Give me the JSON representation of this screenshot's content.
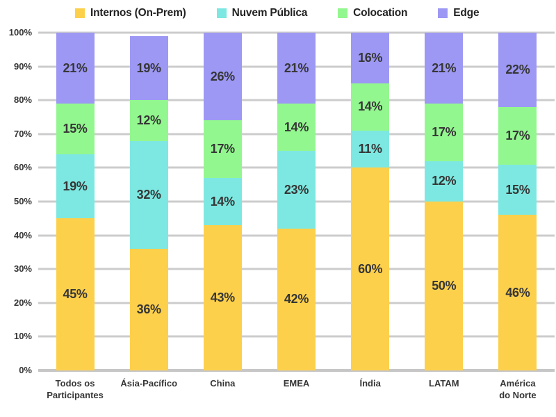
{
  "chart_data": {
    "type": "bar",
    "stacked": true,
    "orientation": "vertical",
    "categories": [
      "Todos os\nParticipantes",
      "Ásia-Pacífico",
      "China",
      "EMEA",
      "Índia",
      "LATAM",
      "América\ndo Norte"
    ],
    "series": [
      {
        "name": "Internos (On-Prem)",
        "color": "#FDD04C",
        "values": [
          45,
          36,
          43,
          42,
          60,
          50,
          46
        ]
      },
      {
        "name": "Nuvem Pública",
        "color": "#7DE8E1",
        "values": [
          19,
          32,
          14,
          23,
          11,
          12,
          15
        ]
      },
      {
        "name": "Colocation",
        "color": "#93F78F",
        "values": [
          15,
          12,
          17,
          14,
          14,
          17,
          17
        ]
      },
      {
        "name": "Edge",
        "color": "#9D98F4",
        "values": [
          21,
          19,
          26,
          21,
          16,
          21,
          22
        ]
      }
    ],
    "title": "",
    "xlabel": "",
    "ylabel": "",
    "ylim": [
      0,
      100
    ],
    "yticks": [
      "0%",
      "10%",
      "20%",
      "30%",
      "40%",
      "50%",
      "60%",
      "70%",
      "80%",
      "90%",
      "100%"
    ],
    "grid": true,
    "legend_position": "top",
    "value_suffix": "%",
    "data_labels": true
  },
  "colors": {
    "gridline": "#CCCCCC",
    "baseline": "#C6C6C6",
    "tick_text": "#363636",
    "segment_label_text": "#363636",
    "legend_text": "#222222",
    "background": "#FFFFFF"
  }
}
